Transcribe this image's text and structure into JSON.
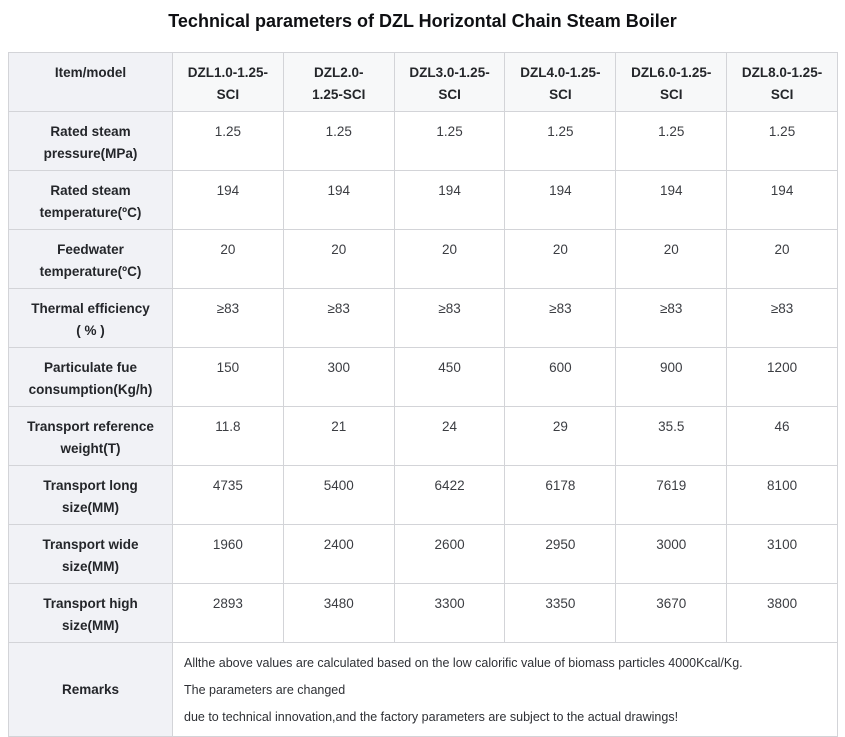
{
  "title": "Technical parameters of DZL Horizontal Chain Steam Boiler",
  "table": {
    "corner_label": "Item/model",
    "models": [
      "DZL1.0-1.25-\nSCI",
      "DZL2.0-\n1.25-SCI",
      "DZL3.0-1.25-\nSCI",
      "DZL4.0-1.25-\nSCI",
      "DZL6.0-1.25-\nSCI",
      "DZL8.0-1.25-\nSCI"
    ],
    "rows": [
      {
        "label": "Rated steam\npressure(MPa)",
        "values": [
          "1.25",
          "1.25",
          "1.25",
          "1.25",
          "1.25",
          "1.25"
        ]
      },
      {
        "label": "Rated steam\ntemperature(ºC)",
        "values": [
          "194",
          "194",
          "194",
          "194",
          "194",
          "194"
        ]
      },
      {
        "label": "Feedwater\ntemperature(ºC)",
        "values": [
          "20",
          "20",
          "20",
          "20",
          "20",
          "20"
        ]
      },
      {
        "label": "Thermal efficiency\n( % )",
        "values": [
          "≥83",
          "≥83",
          "≥83",
          "≥83",
          "≥83",
          "≥83"
        ]
      },
      {
        "label": "Particulate fue\nconsumption(Kg/h)",
        "values": [
          "150",
          "300",
          "450",
          "600",
          "900",
          "1200"
        ]
      },
      {
        "label": "Transport reference\nweight(T)",
        "values": [
          "11.8",
          "21",
          "24",
          "29",
          "35.5",
          "46"
        ]
      },
      {
        "label": "Transport long\nsize(MM)",
        "values": [
          "4735",
          "5400",
          "6422",
          "6178",
          "7619",
          "8100"
        ]
      },
      {
        "label": "Transport wide\nsize(MM)",
        "values": [
          "1960",
          "2400",
          "2600",
          "2950",
          "3000",
          "3100"
        ]
      },
      {
        "label": "Transport high\nsize(MM)",
        "values": [
          "2893",
          "3480",
          "3300",
          "3350",
          "3670",
          "3800"
        ]
      }
    ],
    "remarks": {
      "label": "Remarks",
      "text": "Allthe above values are calculated based on the low calorific value of biomass particles 4000Kcal/Kg.\nThe parameters are changed\ndue to technical innovation,and the factory parameters are subject to the actual drawings!"
    }
  },
  "colors": {
    "header_bg": "#f7f8f9",
    "label_column_bg": "#f1f2f6",
    "border": "#d3d4d8",
    "title_text": "#0f1013",
    "label_text": "#24262a",
    "value_text": "#3b3d42"
  }
}
